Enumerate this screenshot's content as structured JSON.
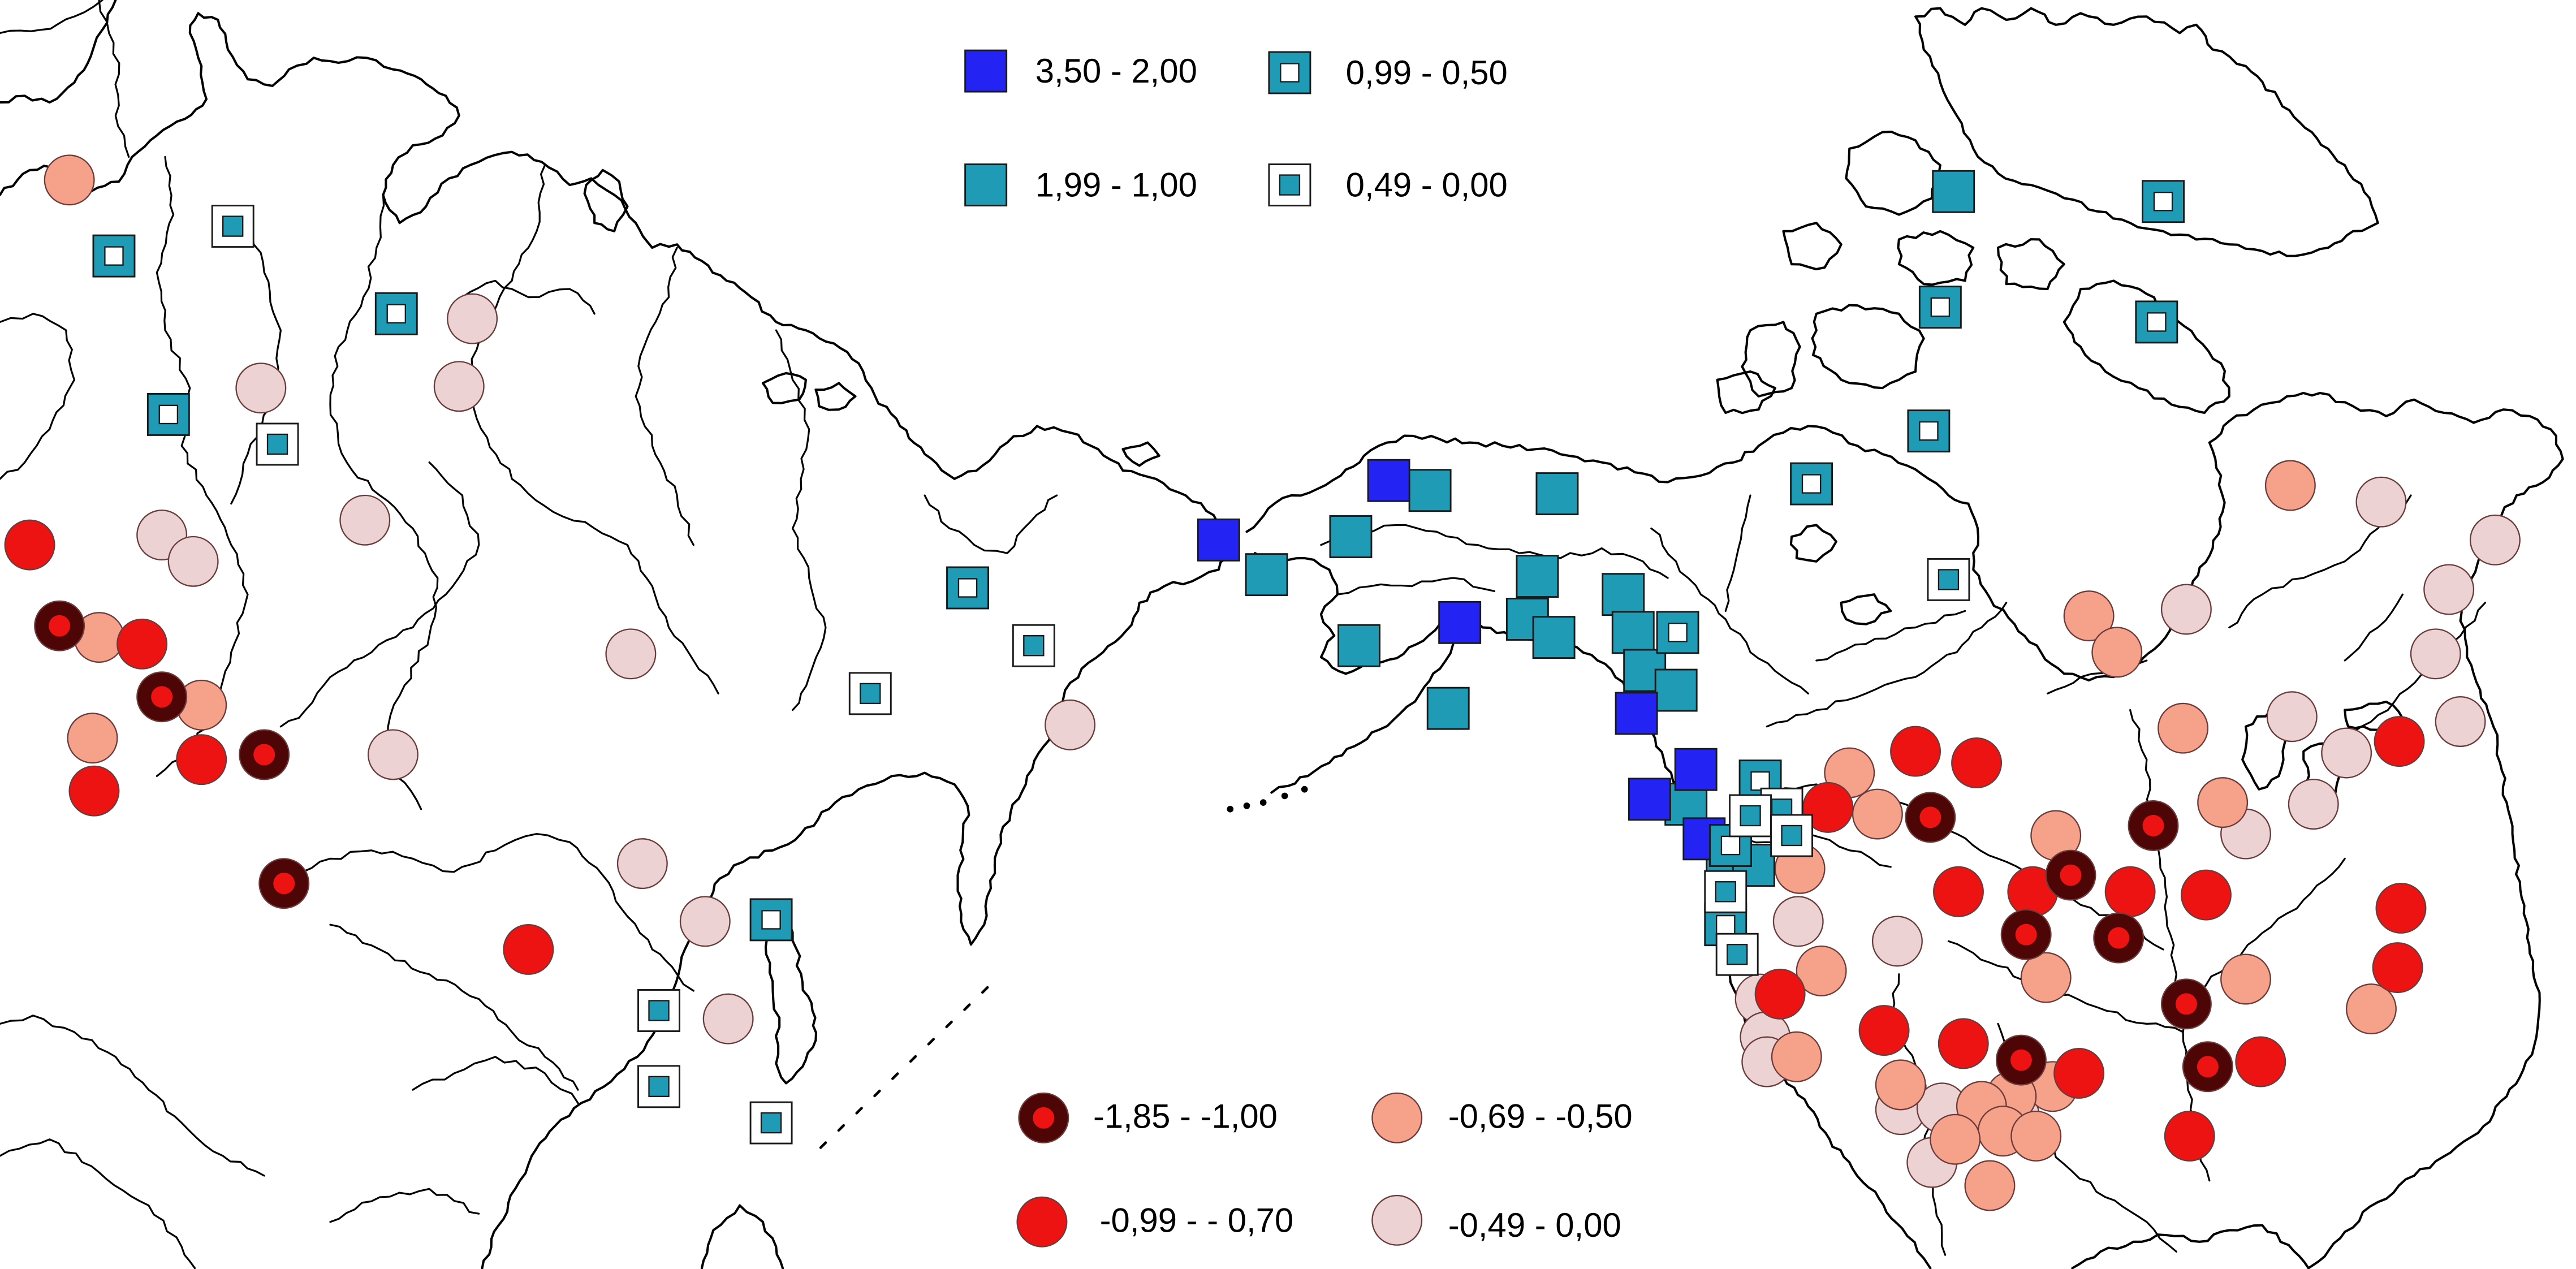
{
  "square_legend": {
    "classes": [
      {
        "label": "3,50 - 2,00",
        "fill": "#2323f4",
        "center_fill": null
      },
      {
        "label": "1,99 - 1,00",
        "fill": "#1f9bb5",
        "center_fill": null
      },
      {
        "label": "0,99 - 0,50",
        "fill": "#1f9bb5",
        "center_fill": "#ffffff"
      },
      {
        "label": "0,49 - 0,00",
        "fill": "#ffffff",
        "center_fill": "#1f9bb5"
      }
    ]
  },
  "circle_legend": {
    "classes": [
      {
        "label": "-1,85 - -1,00",
        "fill": "#4d0505",
        "center_fill": "#ee1313"
      },
      {
        "label": "-0,99 - - 0,70",
        "fill": "#ee1313",
        "center_fill": null
      },
      {
        "label": "-0,69 - -0,50",
        "fill": "#f6a189",
        "center_fill": null
      },
      {
        "label": "-0,49 - 0,00",
        "fill": "#ecd2d2",
        "center_fill": null
      }
    ]
  },
  "colors": {
    "map_lines": "#000000",
    "background": "#ffffff",
    "marker_outline": "#1a1a1a",
    "circle_outline": "#6b3b3b"
  }
}
